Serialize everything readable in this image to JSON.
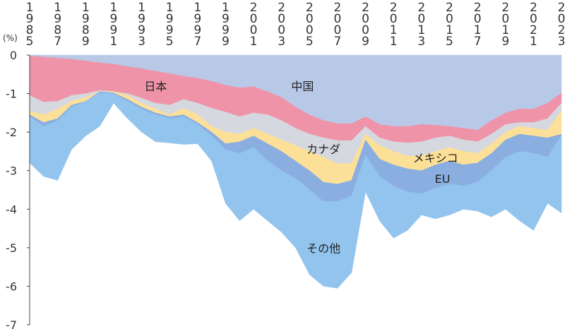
{
  "chart_data": {
    "type": "area",
    "title": "",
    "xlabel": "",
    "ylabel": "(%)",
    "ylim": [
      -7,
      0
    ],
    "yticks": [
      "0",
      "-1",
      "-2",
      "-3",
      "-4",
      "-5",
      "-6",
      "-7"
    ],
    "x": [
      1985,
      1986,
      1987,
      1988,
      1989,
      1990,
      1991,
      1992,
      1993,
      1994,
      1995,
      1996,
      1997,
      1998,
      1999,
      2000,
      2001,
      2002,
      2003,
      2004,
      2005,
      2006,
      2007,
      2008,
      2009,
      2010,
      2011,
      2012,
      2013,
      2014,
      2015,
      2016,
      2017,
      2018,
      2019,
      2020,
      2021,
      2022,
      2023
    ],
    "xtick_labels": [
      "1985",
      "1987",
      "1989",
      "1991",
      "1993",
      "1995",
      "1997",
      "1999",
      "2001",
      "2003",
      "2005",
      "2007",
      "2009",
      "2011",
      "2013",
      "2015",
      "2017",
      "2019",
      "2021",
      "2023"
    ],
    "note": "values are cumulative lower edges of each stacked layer (negative contribution)",
    "series": [
      {
        "name": "中国",
        "color": "#b8c9e8",
        "values": [
          0,
          0,
          0,
          0,
          0,
          0,
          0,
          0,
          0,
          0,
          0,
          0,
          0,
          0,
          0,
          0,
          0,
          0,
          0,
          0,
          0,
          0,
          0,
          0,
          0,
          0,
          0,
          0,
          0,
          0,
          0,
          0,
          0,
          0,
          0,
          0,
          0,
          0,
          0
        ]
      },
      {
        "name": "日本",
        "color": "#ef94a8",
        "values": [
          -0.02,
          -0.05,
          -0.08,
          -0.11,
          -0.15,
          -0.2,
          -0.23,
          -0.3,
          -0.35,
          -0.42,
          -0.48,
          -0.55,
          -0.6,
          -0.68,
          -0.78,
          -0.85,
          -0.82,
          -0.95,
          -1.1,
          -1.35,
          -1.55,
          -1.7,
          -1.78,
          -1.78,
          -1.6,
          -1.8,
          -1.85,
          -1.85,
          -1.8,
          -1.82,
          -1.85,
          -1.9,
          -1.95,
          -1.7,
          -1.5,
          -1.4,
          -1.4,
          -1.25,
          -0.98
        ]
      },
      {
        "name": "カナダ",
        "color": "#d6d8e0",
        "values": [
          -1.05,
          -1.22,
          -1.2,
          -1.05,
          -1.0,
          -0.92,
          -0.95,
          -1.0,
          -1.12,
          -1.25,
          -1.3,
          -1.15,
          -1.25,
          -1.38,
          -1.48,
          -1.6,
          -1.5,
          -1.55,
          -1.7,
          -1.9,
          -2.05,
          -2.15,
          -2.22,
          -2.22,
          -1.85,
          -2.15,
          -2.25,
          -2.28,
          -2.25,
          -2.15,
          -2.1,
          -2.2,
          -2.25,
          -2.05,
          -1.8,
          -1.75,
          -1.75,
          -1.65,
          -1.25
        ]
      },
      {
        "name": "メキシコ",
        "color": "#fde098",
        "values": [
          -1.45,
          -1.55,
          -1.4,
          -1.2,
          -1.1,
          -0.95,
          -0.95,
          -1.05,
          -1.25,
          -1.4,
          -1.55,
          -1.38,
          -1.55,
          -1.85,
          -2.0,
          -2.05,
          -1.9,
          -2.05,
          -2.2,
          -2.35,
          -2.5,
          -2.65,
          -2.82,
          -2.82,
          -2.05,
          -2.35,
          -2.5,
          -2.62,
          -2.62,
          -2.5,
          -2.4,
          -2.5,
          -2.55,
          -2.3,
          -2.0,
          -1.85,
          -1.9,
          -1.95,
          -1.45
        ]
      },
      {
        "name": "EU",
        "color": "#8aaee0",
        "values": [
          -1.55,
          -1.75,
          -1.65,
          -1.3,
          -1.2,
          -0.95,
          -0.98,
          -1.15,
          -1.35,
          -1.5,
          -1.6,
          -1.55,
          -1.75,
          -2.0,
          -2.3,
          -2.25,
          -2.1,
          -2.3,
          -2.5,
          -2.75,
          -3.0,
          -3.3,
          -3.35,
          -3.25,
          -2.2,
          -2.7,
          -2.85,
          -2.95,
          -3.0,
          -2.85,
          -2.75,
          -2.85,
          -2.8,
          -2.55,
          -2.2,
          -2.05,
          -2.1,
          -2.15,
          -2.05
        ]
      },
      {
        "name": "その他",
        "color": "#92c4ee",
        "values": [
          -1.6,
          -1.85,
          -1.7,
          -1.35,
          -1.2,
          -0.98,
          -1.0,
          -1.2,
          -1.4,
          -1.55,
          -1.65,
          -1.6,
          -1.8,
          -2.1,
          -2.45,
          -2.55,
          -2.4,
          -2.75,
          -3.0,
          -3.2,
          -3.5,
          -3.8,
          -3.8,
          -3.65,
          -2.6,
          -3.15,
          -3.4,
          -3.55,
          -3.6,
          -3.45,
          -3.35,
          -3.4,
          -3.3,
          -3.0,
          -2.65,
          -2.5,
          -2.55,
          -2.65,
          -2.08
        ]
      },
      {
        "name": "",
        "color": "#ffffff",
        "values": [
          -2.8,
          -3.15,
          -3.25,
          -2.45,
          -2.1,
          -1.85,
          -1.25,
          -1.65,
          -2.0,
          -2.25,
          -2.28,
          -2.32,
          -2.3,
          -2.75,
          -3.1,
          -3.85,
          -4.3,
          -4.0,
          -4.3,
          -4.6,
          -5.0,
          -5.7,
          -6.0,
          -5.75,
          -3.55,
          -3.8,
          -4.25,
          -4.5,
          -4.2,
          -4.1,
          -3.95,
          -3.9,
          -3.85,
          -4.0,
          -4.15,
          -4.35,
          -4.5,
          -3.9,
          -3.85
        ]
      }
    ],
    "area_bottoms": [
      [
        -2.8,
        -3.15,
        -3.25,
        -2.45,
        -2.1,
        -1.85,
        -1.25,
        -1.65,
        -2.0,
        -2.25,
        -2.28,
        -2.32,
        -2.3,
        -2.75,
        -3.85,
        -4.3,
        -4.0,
        -4.3,
        -4.6,
        -5.0,
        -5.7,
        -6.0,
        -6.05,
        -5.65,
        -3.55,
        -4.3,
        -4.75,
        -4.55,
        -4.15,
        -4.25,
        -4.15,
        -4.0,
        -4.05,
        -4.2,
        -4.0,
        -4.3,
        -4.55,
        -3.85,
        -4.1
      ]
    ],
    "series_labels": [
      "日本",
      "中国",
      "カナダ",
      "メキシコ",
      "EU",
      "その他"
    ]
  }
}
